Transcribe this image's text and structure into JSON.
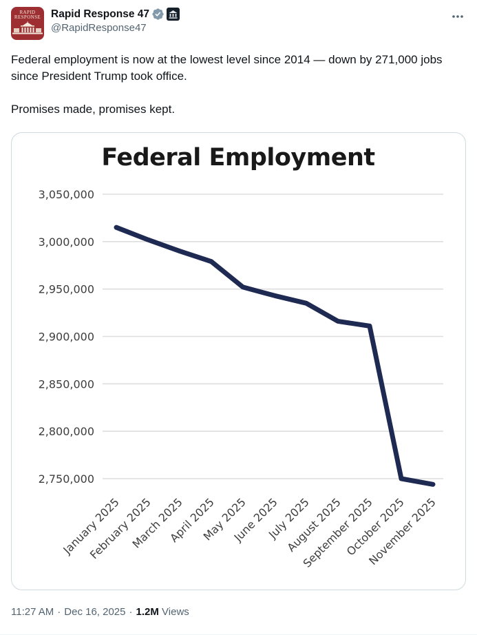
{
  "post": {
    "author": {
      "name": "Rapid Response 47",
      "handle": "@RapidResponse47",
      "avatar": {
        "line1": "RAPID",
        "line2": "RESPONSE"
      }
    },
    "icons": {
      "verified_badge": "gray-verified-checkmark-seal",
      "affiliation_badge": "government-building-square-badge",
      "more": "ellipsis-three-dots"
    },
    "text": {
      "paragraph1": "Federal employment is now at the lowest level since 2014 — down by 271,000 jobs since President Trump took office.",
      "paragraph2": "Promises made, promises kept."
    },
    "meta": {
      "time": "11:27 AM",
      "separator1": "·",
      "date": "Dec 16, 2025",
      "separator2": "·",
      "views_count": "1.2M",
      "views_label": "Views"
    }
  },
  "colors": {
    "line": "#1e2a52",
    "avatar_red": "#9d2f33",
    "verified_gray": "#829aab",
    "text_primary": "#0f1419",
    "text_secondary": "#536471",
    "gridline": "#dedede",
    "card_border": "#cfd9de"
  },
  "chart_data": {
    "type": "line",
    "title": "Federal Employment",
    "categories": [
      "January 2025",
      "February 2025",
      "March 2025",
      "April 2025",
      "May 2025",
      "June 2025",
      "July 2025",
      "August 2025",
      "September 2025",
      "October 2025",
      "November 2025"
    ],
    "values": [
      3015000,
      3002000,
      2990000,
      2979000,
      2952000,
      2943000,
      2935000,
      2916000,
      2911000,
      2750000,
      2744000
    ],
    "xlabel": "",
    "ylabel": "",
    "ylim": [
      2750000,
      3050000
    ],
    "ytick_values": [
      3050000,
      3000000,
      2950000,
      2900000,
      2850000,
      2800000,
      2750000
    ],
    "ytick_labels": [
      "3,050,000",
      "3,000,000",
      "2,950,000",
      "2,900,000",
      "2,850,000",
      "2,800,000",
      "2,750,000"
    ],
    "grid": true,
    "legend": false,
    "line_color": "#1e2a52",
    "line_width": 7
  }
}
